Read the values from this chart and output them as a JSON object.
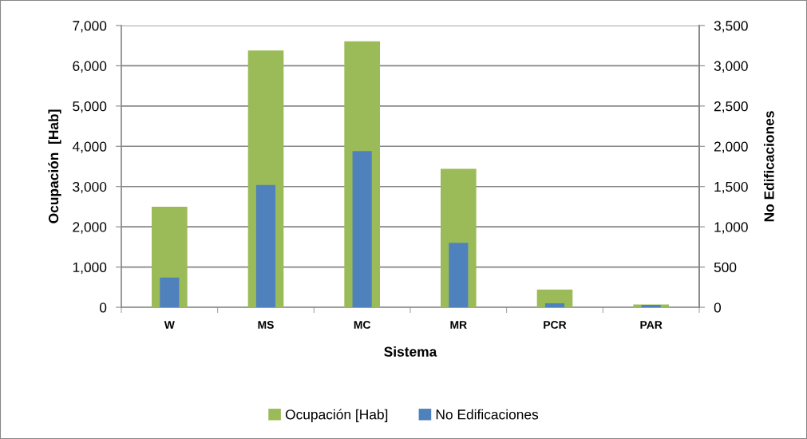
{
  "chart_data": {
    "type": "bar",
    "xlabel": "Sistema",
    "ylabel": "Ocupación  [Hab]",
    "y2label": "No Edificaciones",
    "categories": [
      "W",
      "MS",
      "MC",
      "MR",
      "PCR",
      "PAR"
    ],
    "series": [
      {
        "name": "Ocupación [Hab]",
        "color": "#9bbb59",
        "values": [
          2500,
          6380,
          6610,
          3440,
          440,
          70
        ]
      },
      {
        "name": "No Edificaciones",
        "color": "#4f81bd",
        "axis": "y2",
        "values": [
          370,
          1520,
          1940,
          800,
          50,
          30
        ]
      }
    ],
    "ylim": [
      0,
      7000
    ],
    "yticks": [
      0,
      {
        "value": 1000,
        "label": "1,000"
      },
      {
        "value": 2000,
        "label": "2,000"
      },
      {
        "value": 3000,
        "label": "3,000"
      },
      {
        "value": 4000,
        "label": "4,000"
      },
      {
        "value": 5000,
        "label": "5,000"
      },
      {
        "value": 6000,
        "label": "6,000"
      },
      {
        "value": 7000,
        "label": "7,000"
      }
    ],
    "y2lim": [
      0,
      3500
    ],
    "y2ticks": [
      0,
      {
        "value": 500,
        "label": "500"
      },
      {
        "value": 1000,
        "label": "1,000"
      },
      {
        "value": 1500,
        "label": "1,500"
      },
      {
        "value": 2000,
        "label": "2,000"
      },
      {
        "value": 2500,
        "label": "2,500"
      },
      {
        "value": 3000,
        "label": "3,000"
      },
      {
        "value": 3500,
        "label": "3,500"
      }
    ],
    "grid": "y",
    "legend": "bottom"
  }
}
